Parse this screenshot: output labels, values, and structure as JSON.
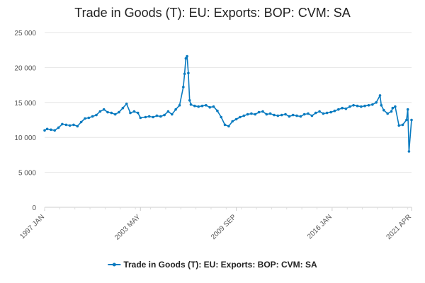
{
  "chart_data": {
    "type": "line",
    "title": "Trade in Goods (T): EU: Exports: BOP: CVM: SA",
    "xlabel": "",
    "ylabel": "",
    "ylim": [
      0,
      25000
    ],
    "y_ticks": [
      0,
      5000,
      10000,
      15000,
      20000,
      25000
    ],
    "y_tick_labels": [
      "0",
      "5 000",
      "10 000",
      "15 000",
      "20 000",
      "25 000"
    ],
    "x_tick_labels": [
      "1997 JAN",
      "2003 MAY",
      "2009 SEP",
      "2016 JAN",
      "2021 APR"
    ],
    "grid": true,
    "legend": "bottom",
    "color": "#0a7bc0",
    "series": [
      {
        "name": "Trade in Goods (T): EU: Exports: BOP: CVM: SA",
        "x": [
          "1997 JAN",
          "1997 MAR",
          "1997 JUN",
          "1997 SEP",
          "1997 DEC",
          "1998 MAR",
          "1998 JUN",
          "1998 SEP",
          "1998 DEC",
          "1999 MAR",
          "1999 JUN",
          "1999 SEP",
          "1999 DEC",
          "2000 MAR",
          "2000 JUN",
          "2000 SEP",
          "2000 DEC",
          "2001 MAR",
          "2001 JUN",
          "2001 SEP",
          "2001 DEC",
          "2002 MAR",
          "2002 JUN",
          "2002 SEP",
          "2002 DEC",
          "2003 MAR",
          "2003 MAY",
          "2003 SEP",
          "2003 DEC",
          "2004 MAR",
          "2004 JUN",
          "2004 SEP",
          "2004 DEC",
          "2005 MAR",
          "2005 JUN",
          "2005 SEP",
          "2005 DEC",
          "2006 MAR",
          "2006 APR",
          "2006 MAY",
          "2006 JUN",
          "2006 JUL",
          "2006 AUG",
          "2006 SEP",
          "2006 DEC",
          "2007 MAR",
          "2007 JUN",
          "2007 SEP",
          "2007 DEC",
          "2008 MAR",
          "2008 JUN",
          "2008 SEP",
          "2008 DEC",
          "2009 MAR",
          "2009 JUN",
          "2009 SEP",
          "2009 DEC",
          "2010 MAR",
          "2010 JUN",
          "2010 SEP",
          "2010 DEC",
          "2011 MAR",
          "2011 JUN",
          "2011 SEP",
          "2011 DEC",
          "2012 MAR",
          "2012 JUN",
          "2012 SEP",
          "2012 DEC",
          "2013 MAR",
          "2013 JUN",
          "2013 SEP",
          "2013 DEC",
          "2014 MAR",
          "2014 JUN",
          "2014 SEP",
          "2014 DEC",
          "2015 MAR",
          "2015 JUN",
          "2015 SEP",
          "2015 DEC",
          "2016 MAR",
          "2016 JUN",
          "2016 SEP",
          "2016 DEC",
          "2017 MAR",
          "2017 JUN",
          "2017 SEP",
          "2017 DEC",
          "2018 MAR",
          "2018 JUN",
          "2018 SEP",
          "2018 DEC",
          "2019 MAR",
          "2019 APR",
          "2019 JUN",
          "2019 SEP",
          "2019 DEC",
          "2020 JAN",
          "2020 MAR",
          "2020 JUN",
          "2020 SEP",
          "2020 DEC",
          "2021 JAN",
          "2021 FEB",
          "2021 APR"
        ],
        "values": [
          11000,
          11200,
          11100,
          11000,
          11400,
          11900,
          11800,
          11700,
          11800,
          11600,
          12200,
          12700,
          12800,
          13000,
          13200,
          13700,
          14000,
          13600,
          13500,
          13300,
          13600,
          14200,
          14800,
          13500,
          13700,
          13500,
          12800,
          12900,
          13000,
          12900,
          13100,
          13000,
          13200,
          13700,
          13300,
          14000,
          14600,
          17200,
          19100,
          21300,
          21600,
          19200,
          15300,
          14700,
          14500,
          14400,
          14500,
          14600,
          14300,
          14400,
          13800,
          12900,
          11800,
          11600,
          12300,
          12600,
          12900,
          13100,
          13300,
          13400,
          13300,
          13600,
          13700,
          13300,
          13400,
          13200,
          13100,
          13200,
          13300,
          13000,
          13200,
          13100,
          13000,
          13300,
          13400,
          13100,
          13500,
          13700,
          13400,
          13500,
          13600,
          13800,
          14000,
          14200,
          14100,
          14400,
          14600,
          14500,
          14400,
          14500,
          14600,
          14700,
          15000,
          16000,
          14600,
          13900,
          13400,
          13700,
          14200,
          14400,
          11700,
          11800,
          12500,
          14000,
          8000,
          12500
        ]
      }
    ]
  }
}
